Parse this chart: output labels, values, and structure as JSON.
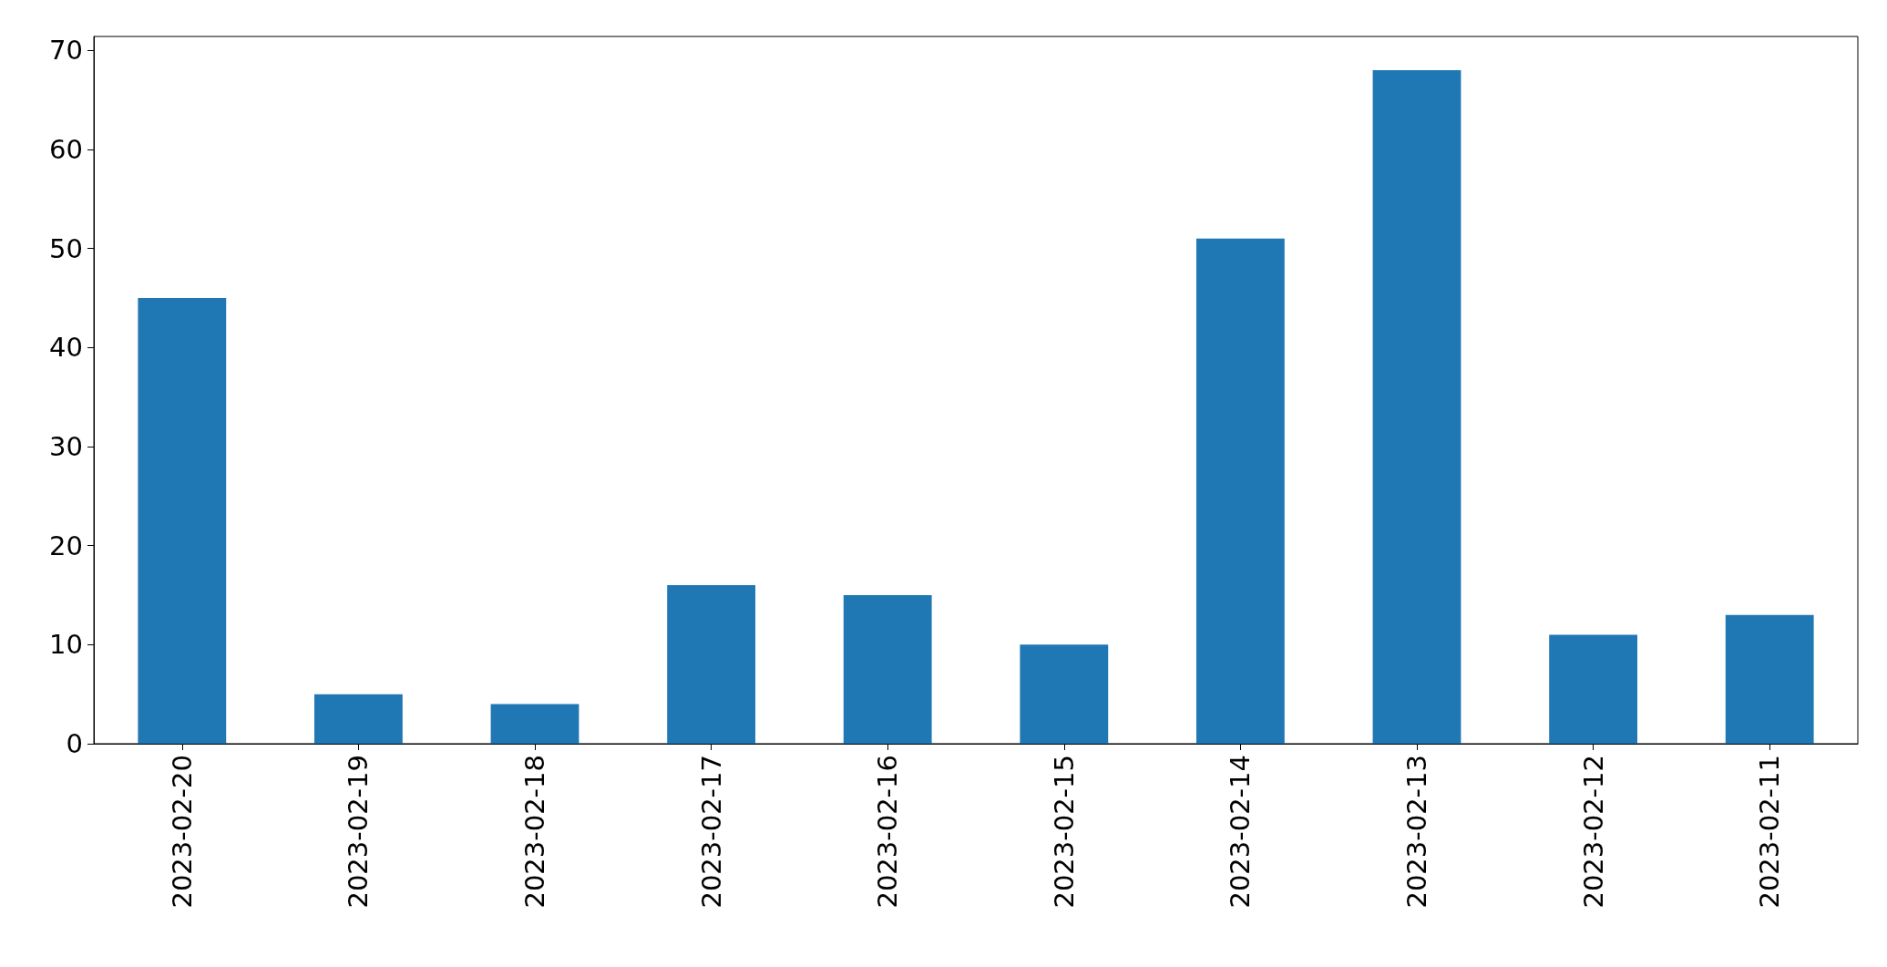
{
  "chart_data": {
    "type": "bar",
    "categories": [
      "2023-02-20",
      "2023-02-19",
      "2023-02-18",
      "2023-02-17",
      "2023-02-16",
      "2023-02-15",
      "2023-02-14",
      "2023-02-13",
      "2023-02-12",
      "2023-02-11"
    ],
    "values": [
      45,
      5,
      4,
      16,
      15,
      10,
      51,
      68,
      11,
      13
    ],
    "color": "#1f77b4",
    "ylim": [
      0,
      71.4
    ],
    "yticks": [
      0,
      10,
      20,
      30,
      40,
      50,
      60,
      70
    ]
  }
}
